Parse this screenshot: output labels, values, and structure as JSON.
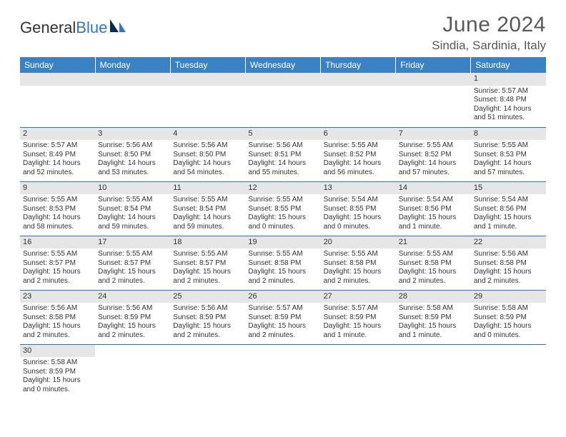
{
  "logo": {
    "text1": "General",
    "text2": "Blue"
  },
  "title": "June 2024",
  "location": "Sindia, Sardinia, Italy",
  "colors": {
    "header_bg": "#3b82c4",
    "header_text": "#ffffff",
    "daynum_bg": "#e6e6e6",
    "rule": "#2f77bb",
    "text": "#333333",
    "title_text": "#595959"
  },
  "weekdays": [
    "Sunday",
    "Monday",
    "Tuesday",
    "Wednesday",
    "Thursday",
    "Friday",
    "Saturday"
  ],
  "weeks": [
    [
      null,
      null,
      null,
      null,
      null,
      null,
      {
        "n": "1",
        "sr": "Sunrise: 5:57 AM",
        "ss": "Sunset: 8:48 PM",
        "dl": "Daylight: 14 hours and 51 minutes."
      }
    ],
    [
      {
        "n": "2",
        "sr": "Sunrise: 5:57 AM",
        "ss": "Sunset: 8:49 PM",
        "dl": "Daylight: 14 hours and 52 minutes."
      },
      {
        "n": "3",
        "sr": "Sunrise: 5:56 AM",
        "ss": "Sunset: 8:50 PM",
        "dl": "Daylight: 14 hours and 53 minutes."
      },
      {
        "n": "4",
        "sr": "Sunrise: 5:56 AM",
        "ss": "Sunset: 8:50 PM",
        "dl": "Daylight: 14 hours and 54 minutes."
      },
      {
        "n": "5",
        "sr": "Sunrise: 5:56 AM",
        "ss": "Sunset: 8:51 PM",
        "dl": "Daylight: 14 hours and 55 minutes."
      },
      {
        "n": "6",
        "sr": "Sunrise: 5:55 AM",
        "ss": "Sunset: 8:52 PM",
        "dl": "Daylight: 14 hours and 56 minutes."
      },
      {
        "n": "7",
        "sr": "Sunrise: 5:55 AM",
        "ss": "Sunset: 8:52 PM",
        "dl": "Daylight: 14 hours and 57 minutes."
      },
      {
        "n": "8",
        "sr": "Sunrise: 5:55 AM",
        "ss": "Sunset: 8:53 PM",
        "dl": "Daylight: 14 hours and 57 minutes."
      }
    ],
    [
      {
        "n": "9",
        "sr": "Sunrise: 5:55 AM",
        "ss": "Sunset: 8:53 PM",
        "dl": "Daylight: 14 hours and 58 minutes."
      },
      {
        "n": "10",
        "sr": "Sunrise: 5:55 AM",
        "ss": "Sunset: 8:54 PM",
        "dl": "Daylight: 14 hours and 59 minutes."
      },
      {
        "n": "11",
        "sr": "Sunrise: 5:55 AM",
        "ss": "Sunset: 8:54 PM",
        "dl": "Daylight: 14 hours and 59 minutes."
      },
      {
        "n": "12",
        "sr": "Sunrise: 5:55 AM",
        "ss": "Sunset: 8:55 PM",
        "dl": "Daylight: 15 hours and 0 minutes."
      },
      {
        "n": "13",
        "sr": "Sunrise: 5:54 AM",
        "ss": "Sunset: 8:55 PM",
        "dl": "Daylight: 15 hours and 0 minutes."
      },
      {
        "n": "14",
        "sr": "Sunrise: 5:54 AM",
        "ss": "Sunset: 8:56 PM",
        "dl": "Daylight: 15 hours and 1 minute."
      },
      {
        "n": "15",
        "sr": "Sunrise: 5:54 AM",
        "ss": "Sunset: 8:56 PM",
        "dl": "Daylight: 15 hours and 1 minute."
      }
    ],
    [
      {
        "n": "16",
        "sr": "Sunrise: 5:55 AM",
        "ss": "Sunset: 8:57 PM",
        "dl": "Daylight: 15 hours and 2 minutes."
      },
      {
        "n": "17",
        "sr": "Sunrise: 5:55 AM",
        "ss": "Sunset: 8:57 PM",
        "dl": "Daylight: 15 hours and 2 minutes."
      },
      {
        "n": "18",
        "sr": "Sunrise: 5:55 AM",
        "ss": "Sunset: 8:57 PM",
        "dl": "Daylight: 15 hours and 2 minutes."
      },
      {
        "n": "19",
        "sr": "Sunrise: 5:55 AM",
        "ss": "Sunset: 8:58 PM",
        "dl": "Daylight: 15 hours and 2 minutes."
      },
      {
        "n": "20",
        "sr": "Sunrise: 5:55 AM",
        "ss": "Sunset: 8:58 PM",
        "dl": "Daylight: 15 hours and 2 minutes."
      },
      {
        "n": "21",
        "sr": "Sunrise: 5:55 AM",
        "ss": "Sunset: 8:58 PM",
        "dl": "Daylight: 15 hours and 2 minutes."
      },
      {
        "n": "22",
        "sr": "Sunrise: 5:56 AM",
        "ss": "Sunset: 8:58 PM",
        "dl": "Daylight: 15 hours and 2 minutes."
      }
    ],
    [
      {
        "n": "23",
        "sr": "Sunrise: 5:56 AM",
        "ss": "Sunset: 8:58 PM",
        "dl": "Daylight: 15 hours and 2 minutes."
      },
      {
        "n": "24",
        "sr": "Sunrise: 5:56 AM",
        "ss": "Sunset: 8:59 PM",
        "dl": "Daylight: 15 hours and 2 minutes."
      },
      {
        "n": "25",
        "sr": "Sunrise: 5:56 AM",
        "ss": "Sunset: 8:59 PM",
        "dl": "Daylight: 15 hours and 2 minutes."
      },
      {
        "n": "26",
        "sr": "Sunrise: 5:57 AM",
        "ss": "Sunset: 8:59 PM",
        "dl": "Daylight: 15 hours and 2 minutes."
      },
      {
        "n": "27",
        "sr": "Sunrise: 5:57 AM",
        "ss": "Sunset: 8:59 PM",
        "dl": "Daylight: 15 hours and 1 minute."
      },
      {
        "n": "28",
        "sr": "Sunrise: 5:58 AM",
        "ss": "Sunset: 8:59 PM",
        "dl": "Daylight: 15 hours and 1 minute."
      },
      {
        "n": "29",
        "sr": "Sunrise: 5:58 AM",
        "ss": "Sunset: 8:59 PM",
        "dl": "Daylight: 15 hours and 0 minutes."
      }
    ],
    [
      {
        "n": "30",
        "sr": "Sunrise: 5:58 AM",
        "ss": "Sunset: 8:59 PM",
        "dl": "Daylight: 15 hours and 0 minutes."
      },
      null,
      null,
      null,
      null,
      null,
      null
    ]
  ]
}
